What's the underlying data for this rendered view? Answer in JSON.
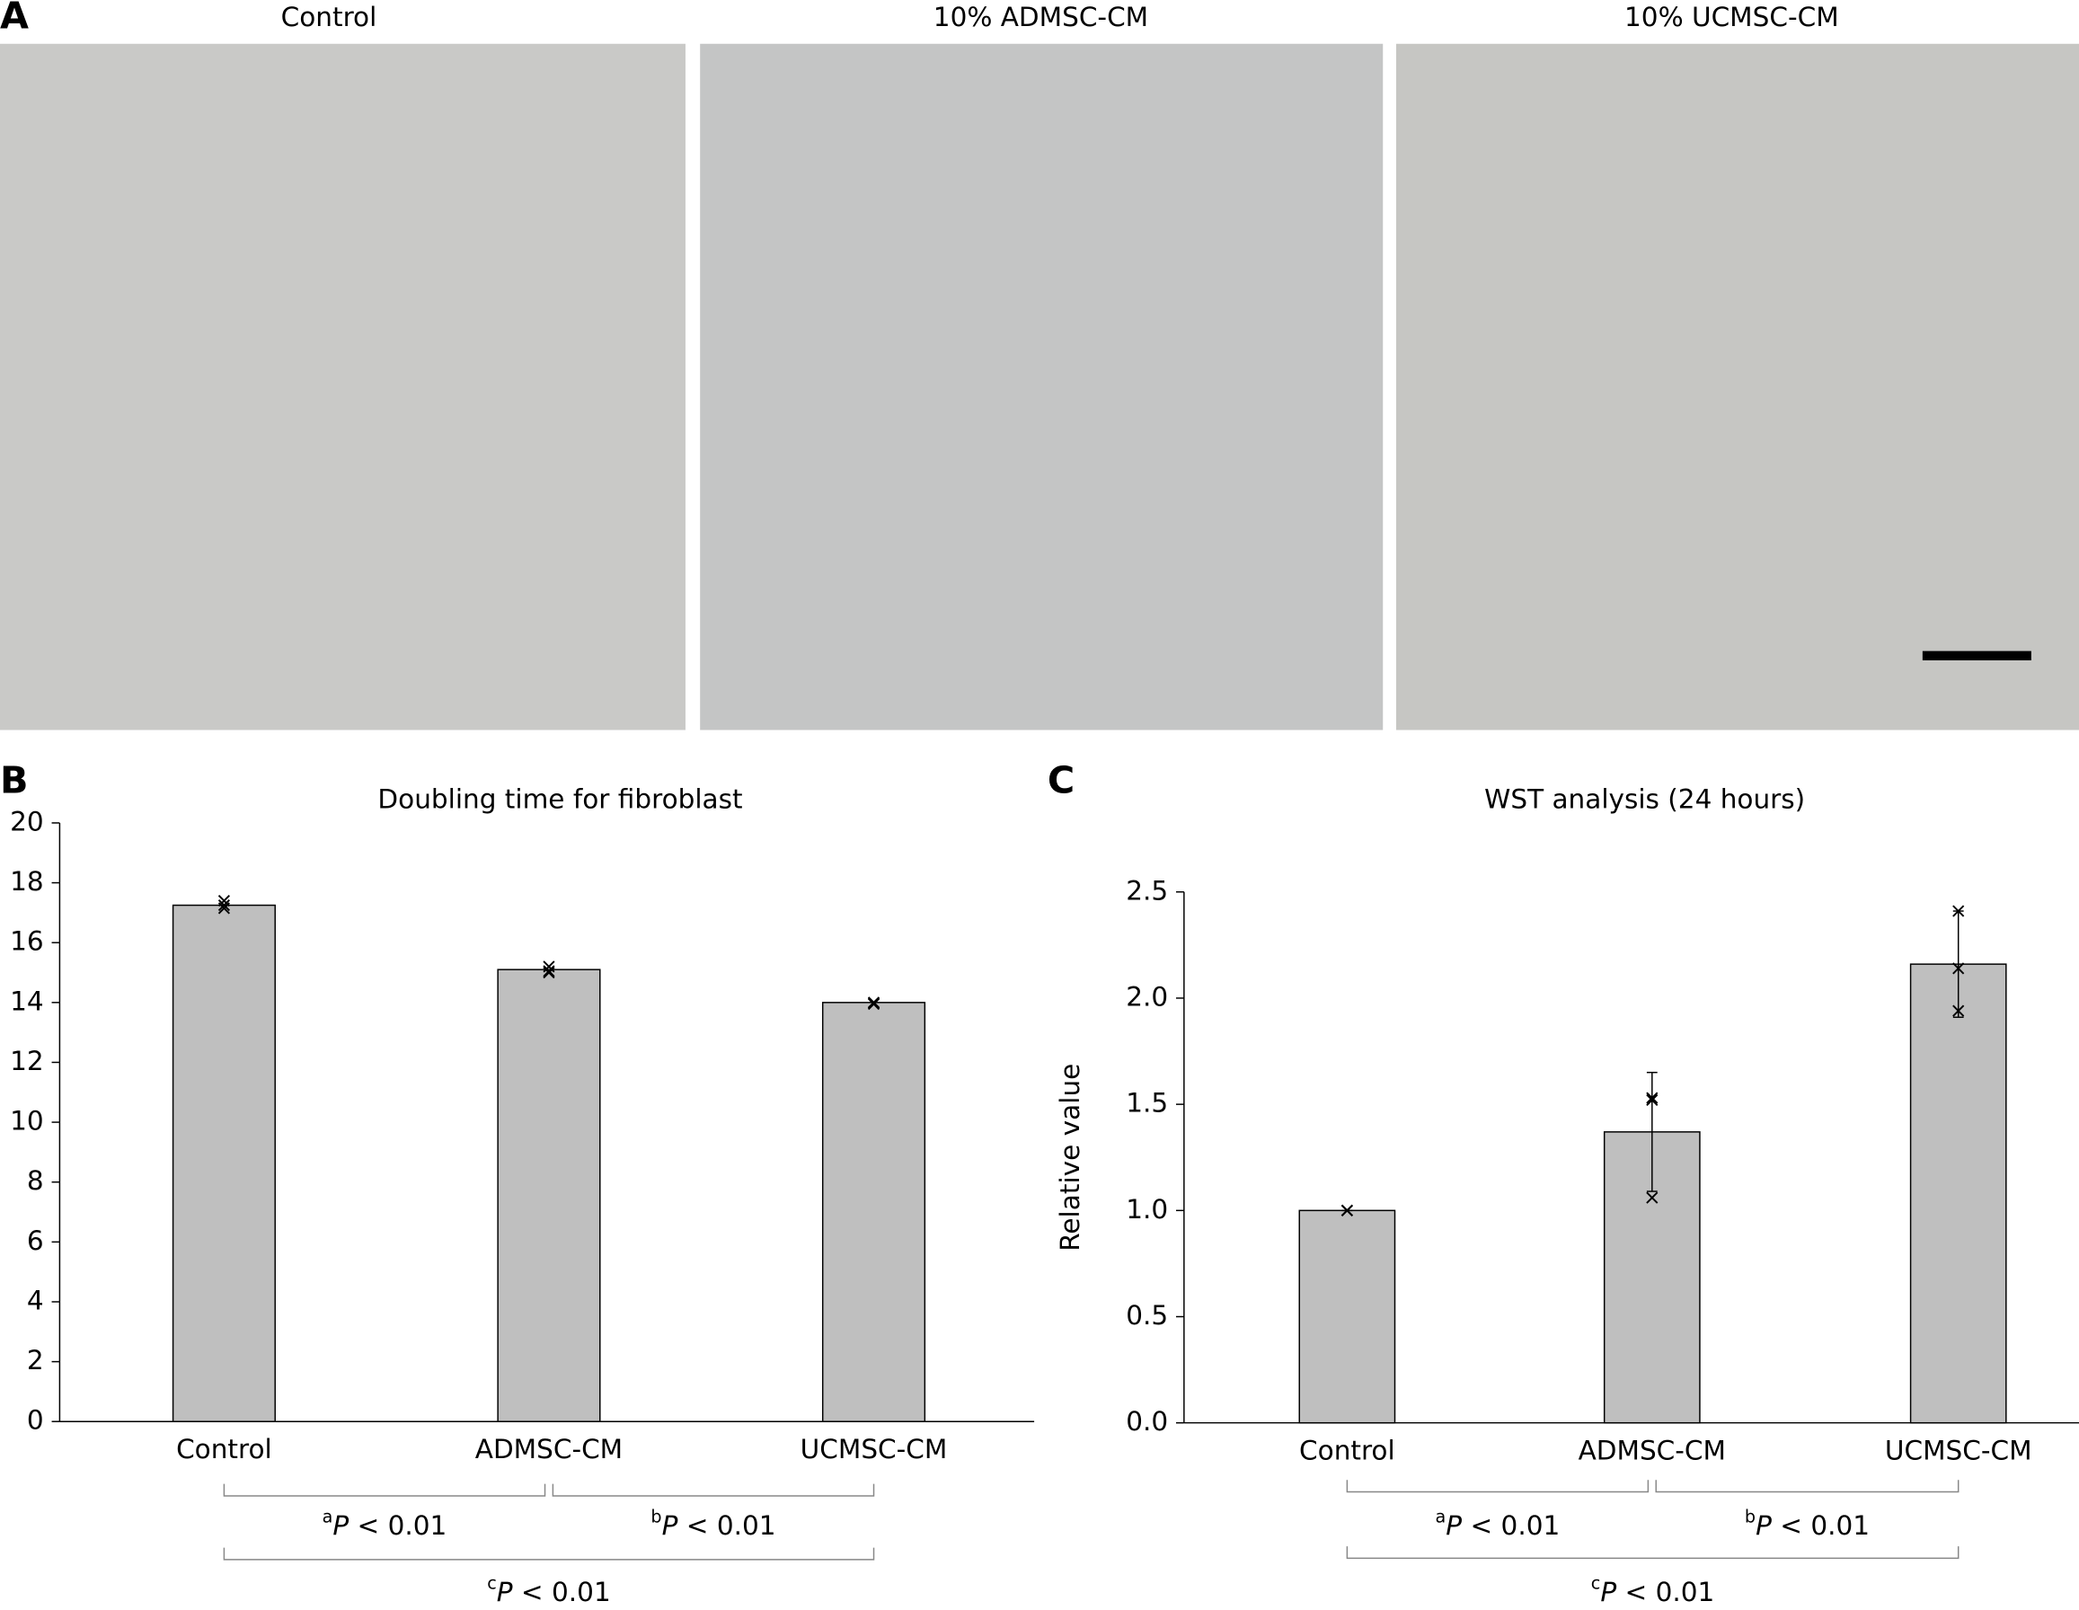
{
  "panel_labels": [
    "A",
    "B",
    "C"
  ],
  "images": [
    {
      "label": "Control"
    },
    {
      "label": "10% ADMSC-CM"
    },
    {
      "label": "10% UCMSC-CM"
    }
  ],
  "chart_data": [
    {
      "type": "bar",
      "title": "Doubling time for fibroblast",
      "categories": [
        "Control",
        "ADMSC-CM",
        "UCMSC-CM"
      ],
      "values": [
        17.25,
        15.1,
        14.0
      ],
      "color": "#bfbfbf",
      "points": [
        [
          17.4,
          17.25,
          17.15
        ],
        [
          15.2,
          15.05,
          15.0
        ],
        [
          14.0,
          13.95,
          13.98
        ]
      ],
      "ylim": [
        0,
        20
      ],
      "yticks": [
        0,
        2,
        4,
        6,
        8,
        10,
        12,
        14,
        16,
        18,
        20
      ],
      "comparisons": [
        {
          "from": 0,
          "to": 1,
          "sup": "a",
          "var": "P",
          "rest": " < 0.01"
        },
        {
          "from": 1,
          "to": 2,
          "sup": "b",
          "var": "P",
          "rest": " < 0.01"
        },
        {
          "from": 0,
          "to": 2,
          "sup": "c",
          "var": "P",
          "rest": " < 0.01"
        }
      ]
    },
    {
      "type": "bar",
      "title": "WST analysis (24 hours)",
      "ylabel": "Relative value",
      "categories": [
        "Control",
        "ADMSC-CM",
        "UCMSC-CM"
      ],
      "values": [
        1.0,
        1.37,
        2.16
      ],
      "errors": [
        0,
        0.28,
        0.25
      ],
      "color": "#bfbfbf",
      "points": [
        [
          1.0,
          1.0,
          1.0
        ],
        [
          1.53,
          1.52,
          1.06
        ],
        [
          2.41,
          2.14,
          1.94
        ]
      ],
      "ylim": [
        0,
        2.5
      ],
      "yticks": [
        {
          "value": 0,
          "label": "0.0"
        },
        {
          "value": 0.5,
          "label": "0.5"
        },
        {
          "value": 1,
          "label": "1.0"
        },
        {
          "value": 1.5,
          "label": "1.5"
        },
        {
          "value": 2,
          "label": "2.0"
        },
        {
          "value": 2.5,
          "label": "2.5"
        }
      ],
      "comparisons": [
        {
          "from": 0,
          "to": 1,
          "sup": "a",
          "var": "P",
          "rest": " < 0.01"
        },
        {
          "from": 1,
          "to": 2,
          "sup": "b",
          "var": "P",
          "rest": " < 0.01"
        },
        {
          "from": 0,
          "to": 2,
          "sup": "c",
          "var": "P",
          "rest": " < 0.01"
        }
      ]
    }
  ]
}
